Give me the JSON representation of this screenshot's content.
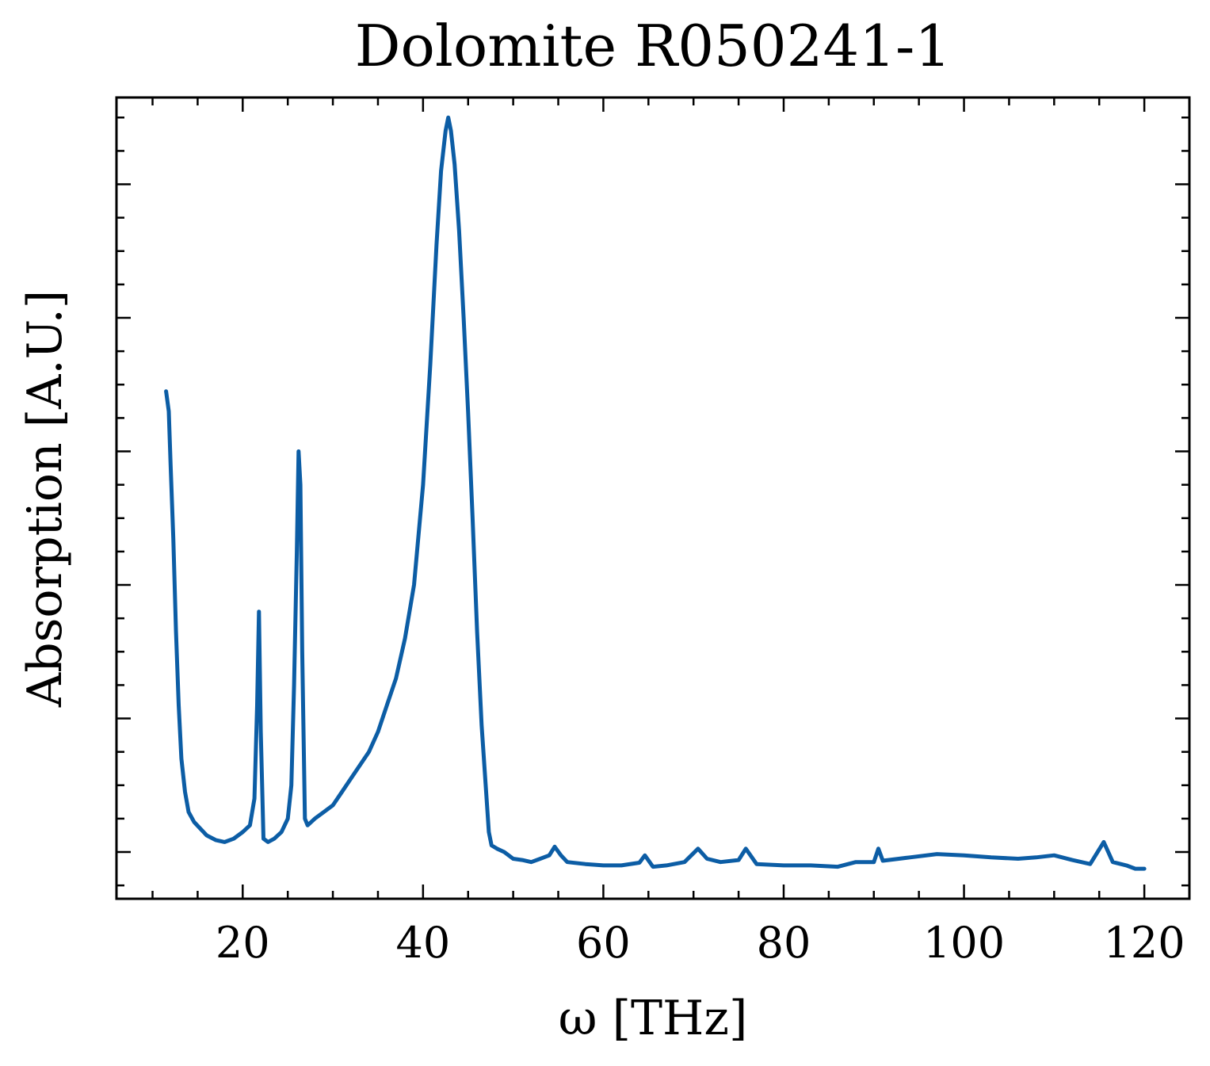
{
  "chart_data": {
    "type": "line",
    "title": "Dolomite R050241-1",
    "xlabel": "ω [THz]",
    "ylabel": "Absorption [A.U.]",
    "xlim": [
      6,
      125
    ],
    "ylim": [
      -0.07,
      1.13
    ],
    "xticks": [
      20,
      40,
      60,
      80,
      100,
      120
    ],
    "x_minor_step": 5,
    "y_major_ticks": [
      0,
      0.2,
      0.4,
      0.6,
      0.8,
      1.0
    ],
    "y_minor_step": 0.05,
    "ytick_labels_shown": false,
    "grid": false,
    "legend": "none",
    "line_color": "#0C5DA5",
    "series": [
      {
        "values_x": [
          11.5,
          11.8,
          12.0,
          12.3,
          12.6,
          12.9,
          13.2,
          13.6,
          14.0,
          14.6,
          15.3,
          16.0,
          17.0,
          18.0,
          19.0,
          20.0,
          20.8,
          21.3,
          21.6,
          21.8,
          22.0,
          22.3,
          22.8,
          23.5,
          24.3,
          25.0,
          25.4,
          25.7,
          26.0,
          26.2,
          26.4,
          26.6,
          26.9,
          27.2,
          28.0,
          29.0,
          30.0,
          31.0,
          32.0,
          33.0,
          34.0,
          35.0,
          36.0,
          37.0,
          38.0,
          39.0,
          40.0,
          40.8,
          41.5,
          42.0,
          42.5,
          42.8,
          43.1,
          43.5,
          44.0,
          44.5,
          45.0,
          45.5,
          46.0,
          46.5,
          47.0,
          47.3,
          47.6,
          48.2,
          49.0,
          50.0,
          51.0,
          52.0,
          53.0,
          54.0,
          54.6,
          55.3,
          56.0,
          58.0,
          60.0,
          62.0,
          64.0,
          64.6,
          65.5,
          67.0,
          69.0,
          70.5,
          71.5,
          73.0,
          75.0,
          75.8,
          77.0,
          80.0,
          83.0,
          86.0,
          88.0,
          90.0,
          90.5,
          91.0,
          94.0,
          97.0,
          100.0,
          103.0,
          106.0,
          108.0,
          110.0,
          112.0,
          114.0,
          115.5,
          116.5,
          118.0,
          119.0,
          120.0
        ],
        "values_y": [
          0.69,
          0.66,
          0.58,
          0.47,
          0.33,
          0.22,
          0.14,
          0.09,
          0.06,
          0.045,
          0.035,
          0.025,
          0.018,
          0.015,
          0.02,
          0.03,
          0.04,
          0.08,
          0.22,
          0.36,
          0.18,
          0.02,
          0.015,
          0.02,
          0.03,
          0.05,
          0.1,
          0.25,
          0.45,
          0.6,
          0.55,
          0.3,
          0.05,
          0.04,
          0.05,
          0.06,
          0.07,
          0.09,
          0.11,
          0.13,
          0.15,
          0.18,
          0.22,
          0.26,
          0.32,
          0.4,
          0.55,
          0.73,
          0.91,
          1.02,
          1.08,
          1.1,
          1.08,
          1.03,
          0.93,
          0.8,
          0.66,
          0.5,
          0.33,
          0.19,
          0.09,
          0.03,
          0.01,
          0.005,
          0.0,
          -0.01,
          -0.012,
          -0.015,
          -0.01,
          -0.005,
          0.008,
          -0.005,
          -0.015,
          -0.018,
          -0.02,
          -0.02,
          -0.016,
          -0.005,
          -0.022,
          -0.02,
          -0.015,
          0.005,
          -0.01,
          -0.015,
          -0.012,
          0.005,
          -0.018,
          -0.02,
          -0.02,
          -0.022,
          -0.015,
          -0.015,
          0.005,
          -0.013,
          -0.008,
          -0.003,
          -0.005,
          -0.008,
          -0.01,
          -0.008,
          -0.005,
          -0.012,
          -0.018,
          0.015,
          -0.015,
          -0.02,
          -0.025,
          -0.025
        ]
      }
    ]
  }
}
